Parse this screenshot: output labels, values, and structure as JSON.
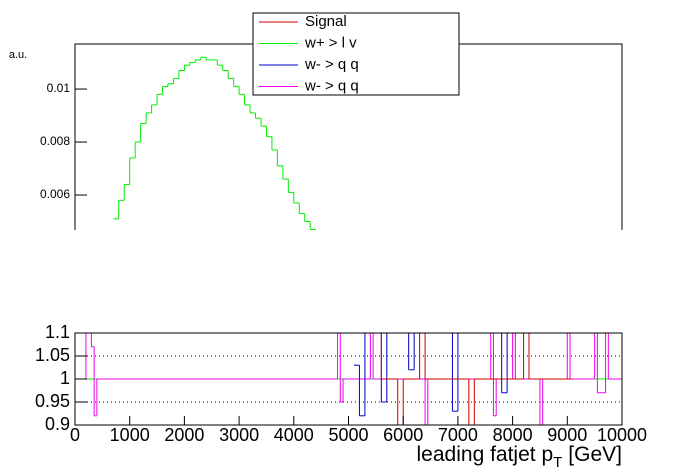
{
  "chart_data": [
    {
      "type": "histogram",
      "ylabel": "a.u.",
      "xlim": [
        0,
        10000
      ],
      "ylim": [
        0.00468,
        0.0117
      ],
      "yticks": [
        0.006,
        0.008,
        0.01
      ],
      "series": [
        {
          "name": "Signal",
          "color": "#cc0000",
          "bins": [],
          "values": []
        },
        {
          "name": "w+ > l v",
          "color": "#00ee00",
          "bins": [
            700,
            800,
            900,
            1000,
            1100,
            1200,
            1300,
            1400,
            1500,
            1600,
            1700,
            1800,
            1900,
            2000,
            2100,
            2200,
            2300,
            2400,
            2500,
            2600,
            2700,
            2800,
            2900,
            3000,
            3100,
            3200,
            3300,
            3400,
            3500,
            3600,
            3700,
            3800,
            3900,
            4000,
            4100,
            4200,
            4300,
            4400
          ],
          "values": [
            0.0051,
            0.0058,
            0.0064,
            0.0074,
            0.008,
            0.0087,
            0.0091,
            0.0094,
            0.0098,
            0.0101,
            0.0102,
            0.0104,
            0.0107,
            0.0109,
            0.011,
            0.0111,
            0.0112,
            0.0111,
            0.0111,
            0.0109,
            0.0107,
            0.0104,
            0.0101,
            0.0098,
            0.0094,
            0.0091,
            0.0089,
            0.0086,
            0.0082,
            0.0077,
            0.0071,
            0.0066,
            0.0061,
            0.0057,
            0.0053,
            0.005,
            0.0047
          ]
        },
        {
          "name": "w- > q q",
          "color": "#0000cc",
          "bins": [],
          "values": []
        },
        {
          "name": "w- > q q",
          "color": "#ee00ee",
          "bins": [],
          "values": []
        }
      ]
    },
    {
      "type": "ratio",
      "x_label": [
        "leading fatjet p",
        "T",
        "[GeV]"
      ],
      "xlim": [
        0,
        10000
      ],
      "xticks": [
        0,
        1000,
        2000,
        3000,
        4000,
        5000,
        6000,
        7000,
        8000,
        9000,
        10000
      ],
      "ylim": [
        0.9,
        1.1
      ],
      "yticks": [
        0.9,
        0.95,
        1,
        1.05,
        1.1
      ],
      "grid": true,
      "series": [
        {
          "color": "#00ee00",
          "bins": [
            0,
            10000
          ],
          "values": [
            1
          ]
        },
        {
          "color": "#ee00ee",
          "bins": [
            0,
            200,
            300,
            350,
            400,
            4800,
            4850,
            4900,
            5400,
            5450,
            6400,
            6450,
            7600,
            7650,
            7700,
            8000,
            8050,
            8500,
            8550,
            9000,
            9050,
            9500,
            9550,
            9700,
            9750,
            10000
          ],
          "values": [
            1,
            1.1,
            1.07,
            0.92,
            1,
            1.1,
            0.95,
            1,
            1.1,
            1,
            0.9,
            1,
            1.1,
            0.92,
            1,
            1.1,
            1,
            0.9,
            1,
            1.1,
            1,
            1.1,
            0.97,
            1.1,
            1
          ]
        },
        {
          "color": "#0000cc",
          "bins": [
            5100,
            5200,
            5300,
            5600,
            5700,
            6100,
            6200,
            6900,
            7000,
            7800,
            7900,
            8300,
            8400
          ],
          "values": [
            1.03,
            0.92,
            1.1,
            0.95,
            1.1,
            1.02,
            1.1,
            0.93,
            1.1,
            0.97,
            1.1,
            1.0
          ]
        },
        {
          "color": "#cc0000",
          "bins": [
            5500,
            5600,
            5900,
            6000,
            6300,
            6400,
            7200,
            7300,
            8200,
            8300,
            9100
          ],
          "values": [
            1.1,
            1,
            0.9,
            1,
            1.1,
            1,
            0.9,
            1,
            1.1,
            1
          ]
        }
      ]
    }
  ]
}
